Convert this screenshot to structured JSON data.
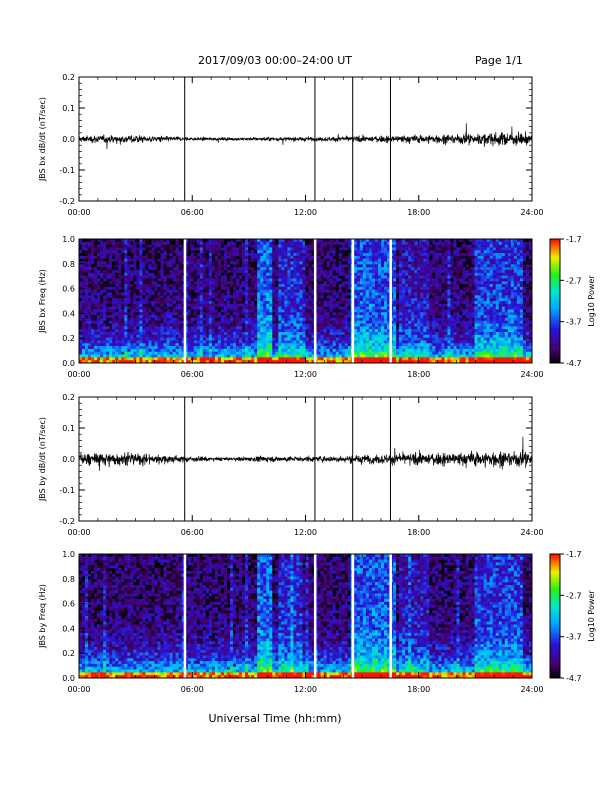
{
  "header": {
    "title": "2017/09/03  00:00–24:00 UT",
    "page": "Page 1/1"
  },
  "xaxis": {
    "label": "Universal Time (hh:mm)",
    "ticks": [
      "00:00",
      "06:00",
      "12:00",
      "18:00",
      "24:00"
    ]
  },
  "colorbar": {
    "label": "Log10 Power",
    "ticks": [
      "-1.7",
      "-2.7",
      "-3.7",
      "-4.7"
    ]
  },
  "chart_data": [
    {
      "type": "line",
      "ylabel": "JBS bx dB/dt (nT/sec)",
      "xlabel": "",
      "xlim": [
        0,
        24
      ],
      "ylim": [
        -0.2,
        0.2
      ],
      "yticks": [
        "0.2",
        "0.1",
        "0.0",
        "-0.1",
        "-0.2"
      ],
      "spikes_hours": [
        5.6,
        12.5,
        14.5,
        16.5
      ],
      "noise_profile": {
        "hours": [
          0,
          2,
          4,
          6,
          8,
          10,
          12,
          14,
          16,
          18,
          20,
          22,
          24
        ],
        "amplitude": [
          0.02,
          0.025,
          0.02,
          0.01,
          0.008,
          0.012,
          0.012,
          0.015,
          0.02,
          0.025,
          0.03,
          0.04,
          0.035
        ]
      }
    },
    {
      "type": "heatmap",
      "ylabel": "JBS bx Freq (Hz)",
      "xlim": [
        0,
        24
      ],
      "ylim": [
        0.0,
        1.0
      ],
      "yticks": [
        "1.0",
        "0.8",
        "0.6",
        "0.4",
        "0.2",
        "0.0"
      ],
      "color_range": [
        -4.7,
        -1.7
      ],
      "gaps_hours": [
        5.6,
        12.5,
        14.5,
        16.5
      ]
    },
    {
      "type": "line",
      "ylabel": "JBS by dB/dt (nT/sec)",
      "xlim": [
        0,
        24
      ],
      "ylim": [
        -0.2,
        0.2
      ],
      "yticks": [
        "0.2",
        "0.1",
        "0.0",
        "-0.1",
        "-0.2"
      ],
      "spikes_hours": [
        5.6,
        12.5,
        14.5,
        16.5
      ],
      "noise_profile": {
        "hours": [
          0,
          2,
          4,
          6,
          8,
          10,
          12,
          14,
          16,
          18,
          20,
          22,
          24
        ],
        "amplitude": [
          0.035,
          0.04,
          0.03,
          0.015,
          0.01,
          0.018,
          0.015,
          0.02,
          0.03,
          0.035,
          0.04,
          0.05,
          0.045
        ]
      }
    },
    {
      "type": "heatmap",
      "ylabel": "JBS by Freq (Hz)",
      "xlim": [
        0,
        24
      ],
      "ylim": [
        0.0,
        1.0
      ],
      "yticks": [
        "1.0",
        "0.8",
        "0.6",
        "0.4",
        "0.2",
        "0.0"
      ],
      "color_range": [
        -4.7,
        -1.7
      ],
      "gaps_hours": [
        5.6,
        12.5,
        14.5,
        16.5
      ]
    }
  ]
}
